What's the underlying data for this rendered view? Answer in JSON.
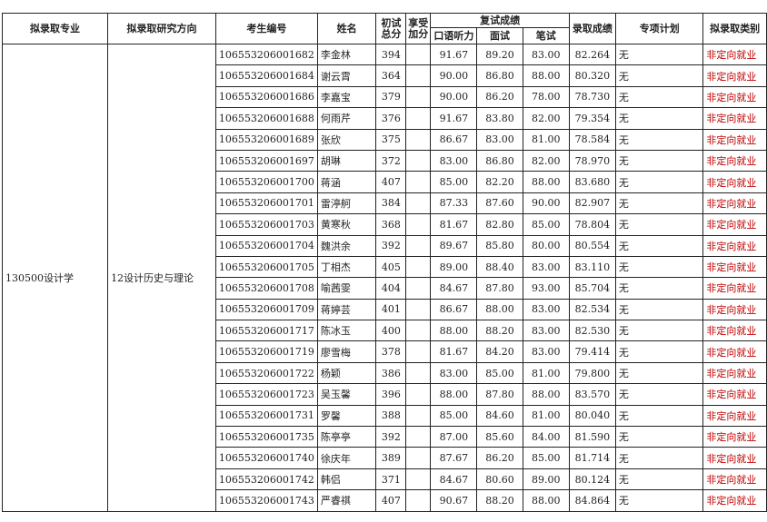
{
  "headers": {
    "major": "拟录取专业",
    "direction": "拟录取研究方向",
    "exam_id": "考生编号",
    "name": "姓名",
    "initial_total": "初试总分",
    "bonus": "享受加分",
    "retest": "复试成绩",
    "oral": "口语听力",
    "interview": "面试",
    "written": "笔试",
    "admission_score": "录取成绩",
    "special_plan": "专项计划",
    "category": "拟录取类别"
  },
  "group": {
    "major": "130500设计学",
    "direction": "12设计历史与理论"
  },
  "rows": [
    {
      "id": "106553206001682",
      "name": "李金林",
      "total": "394",
      "bonus": "",
      "oral": "91.67",
      "interview": "89.20",
      "written": "83.00",
      "score": "82.264",
      "plan": "无",
      "category": "非定向就业"
    },
    {
      "id": "106553206001684",
      "name": "谢云霄",
      "total": "364",
      "bonus": "",
      "oral": "90.00",
      "interview": "86.80",
      "written": "88.00",
      "score": "80.320",
      "plan": "无",
      "category": "非定向就业"
    },
    {
      "id": "106553206001686",
      "name": "李嘉宝",
      "total": "379",
      "bonus": "",
      "oral": "90.00",
      "interview": "86.20",
      "written": "78.00",
      "score": "78.730",
      "plan": "无",
      "category": "非定向就业"
    },
    {
      "id": "106553206001688",
      "name": "何雨芹",
      "total": "376",
      "bonus": "",
      "oral": "91.67",
      "interview": "83.80",
      "written": "82.00",
      "score": "79.354",
      "plan": "无",
      "category": "非定向就业"
    },
    {
      "id": "106553206001689",
      "name": "张欣",
      "total": "375",
      "bonus": "",
      "oral": "86.67",
      "interview": "83.00",
      "written": "81.00",
      "score": "78.584",
      "plan": "无",
      "category": "非定向就业"
    },
    {
      "id": "106553206001697",
      "name": "胡琳",
      "total": "372",
      "bonus": "",
      "oral": "83.00",
      "interview": "86.80",
      "written": "82.00",
      "score": "78.970",
      "plan": "无",
      "category": "非定向就业"
    },
    {
      "id": "106553206001700",
      "name": "蒋涵",
      "total": "407",
      "bonus": "",
      "oral": "85.00",
      "interview": "82.20",
      "written": "88.00",
      "score": "83.680",
      "plan": "无",
      "category": "非定向就业"
    },
    {
      "id": "106553206001701",
      "name": "雷渟舸",
      "total": "384",
      "bonus": "",
      "oral": "87.33",
      "interview": "87.60",
      "written": "90.00",
      "score": "82.907",
      "plan": "无",
      "category": "非定向就业"
    },
    {
      "id": "106553206001703",
      "name": "黄寒秋",
      "total": "368",
      "bonus": "",
      "oral": "81.67",
      "interview": "82.80",
      "written": "85.00",
      "score": "78.804",
      "plan": "无",
      "category": "非定向就业"
    },
    {
      "id": "106553206001704",
      "name": "魏洪余",
      "total": "392",
      "bonus": "",
      "oral": "89.67",
      "interview": "85.80",
      "written": "80.00",
      "score": "80.554",
      "plan": "无",
      "category": "非定向就业"
    },
    {
      "id": "106553206001705",
      "name": "丁相杰",
      "total": "405",
      "bonus": "",
      "oral": "89.00",
      "interview": "88.40",
      "written": "83.00",
      "score": "83.110",
      "plan": "无",
      "category": "非定向就业"
    },
    {
      "id": "106553206001708",
      "name": "喻茜雯",
      "total": "404",
      "bonus": "",
      "oral": "84.67",
      "interview": "87.80",
      "written": "93.00",
      "score": "85.704",
      "plan": "无",
      "category": "非定向就业"
    },
    {
      "id": "106553206001709",
      "name": "蒋婷芸",
      "total": "401",
      "bonus": "",
      "oral": "86.67",
      "interview": "88.00",
      "written": "83.00",
      "score": "82.534",
      "plan": "无",
      "category": "非定向就业"
    },
    {
      "id": "106553206001717",
      "name": "陈冰玉",
      "total": "400",
      "bonus": "",
      "oral": "88.00",
      "interview": "88.20",
      "written": "83.00",
      "score": "82.530",
      "plan": "无",
      "category": "非定向就业"
    },
    {
      "id": "106553206001719",
      "name": "廖雪梅",
      "total": "378",
      "bonus": "",
      "oral": "81.67",
      "interview": "84.20",
      "written": "83.00",
      "score": "79.414",
      "plan": "无",
      "category": "非定向就业"
    },
    {
      "id": "106553206001722",
      "name": "杨颖",
      "total": "386",
      "bonus": "",
      "oral": "83.00",
      "interview": "85.00",
      "written": "81.00",
      "score": "79.800",
      "plan": "无",
      "category": "非定向就业"
    },
    {
      "id": "106553206001723",
      "name": "吴玉馨",
      "total": "396",
      "bonus": "",
      "oral": "88.00",
      "interview": "87.80",
      "written": "88.00",
      "score": "83.570",
      "plan": "无",
      "category": "非定向就业"
    },
    {
      "id": "106553206001731",
      "name": "罗馨",
      "total": "388",
      "bonus": "",
      "oral": "85.00",
      "interview": "84.60",
      "written": "81.00",
      "score": "80.040",
      "plan": "无",
      "category": "非定向就业"
    },
    {
      "id": "106553206001735",
      "name": "陈亭亭",
      "total": "392",
      "bonus": "",
      "oral": "87.00",
      "interview": "85.60",
      "written": "84.00",
      "score": "81.590",
      "plan": "无",
      "category": "非定向就业"
    },
    {
      "id": "106553206001740",
      "name": "徐庆年",
      "total": "389",
      "bonus": "",
      "oral": "87.67",
      "interview": "86.20",
      "written": "85.00",
      "score": "81.714",
      "plan": "无",
      "category": "非定向就业"
    },
    {
      "id": "106553206001742",
      "name": "韩侣",
      "total": "371",
      "bonus": "",
      "oral": "84.67",
      "interview": "80.60",
      "written": "89.00",
      "score": "80.124",
      "plan": "无",
      "category": "非定向就业"
    },
    {
      "id": "106553206001743",
      "name": "严睿祺",
      "total": "407",
      "bonus": "",
      "oral": "90.67",
      "interview": "88.20",
      "written": "88.00",
      "score": "84.864",
      "plan": "无",
      "category": "非定向就业"
    }
  ],
  "colors": {
    "category_text": "#c00000",
    "border": "#222222"
  }
}
